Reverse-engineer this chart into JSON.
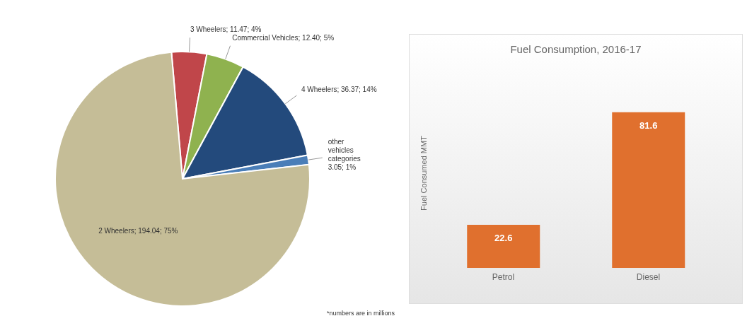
{
  "chart_data": [
    {
      "type": "pie",
      "categories": [
        "3 Wheelers",
        "Commercial Vehicles",
        "4 Wheelers",
        "other vehicles categories",
        "2 Wheelers"
      ],
      "values": [
        11.47,
        12.4,
        36.37,
        3.05,
        194.04
      ],
      "value_labels": [
        "11.47; 4%",
        "12.40; 5%",
        "36.37; 14%",
        "3.05; 1%",
        "194.04; 75%"
      ],
      "colors": [
        "#c0464a",
        "#8fb24f",
        "#234a7c",
        "#4a7eb8",
        "#c5bd97"
      ],
      "annotations": [
        "*numbers are in millions"
      ]
    },
    {
      "type": "bar",
      "title": "Fuel Consumption, 2016-17",
      "ylabel": "Fuel Consumed MMT",
      "categories": [
        "Petrol",
        "Diesel"
      ],
      "values": [
        22.6,
        81.6
      ],
      "color": "#e0702e",
      "data_labels": true
    }
  ]
}
